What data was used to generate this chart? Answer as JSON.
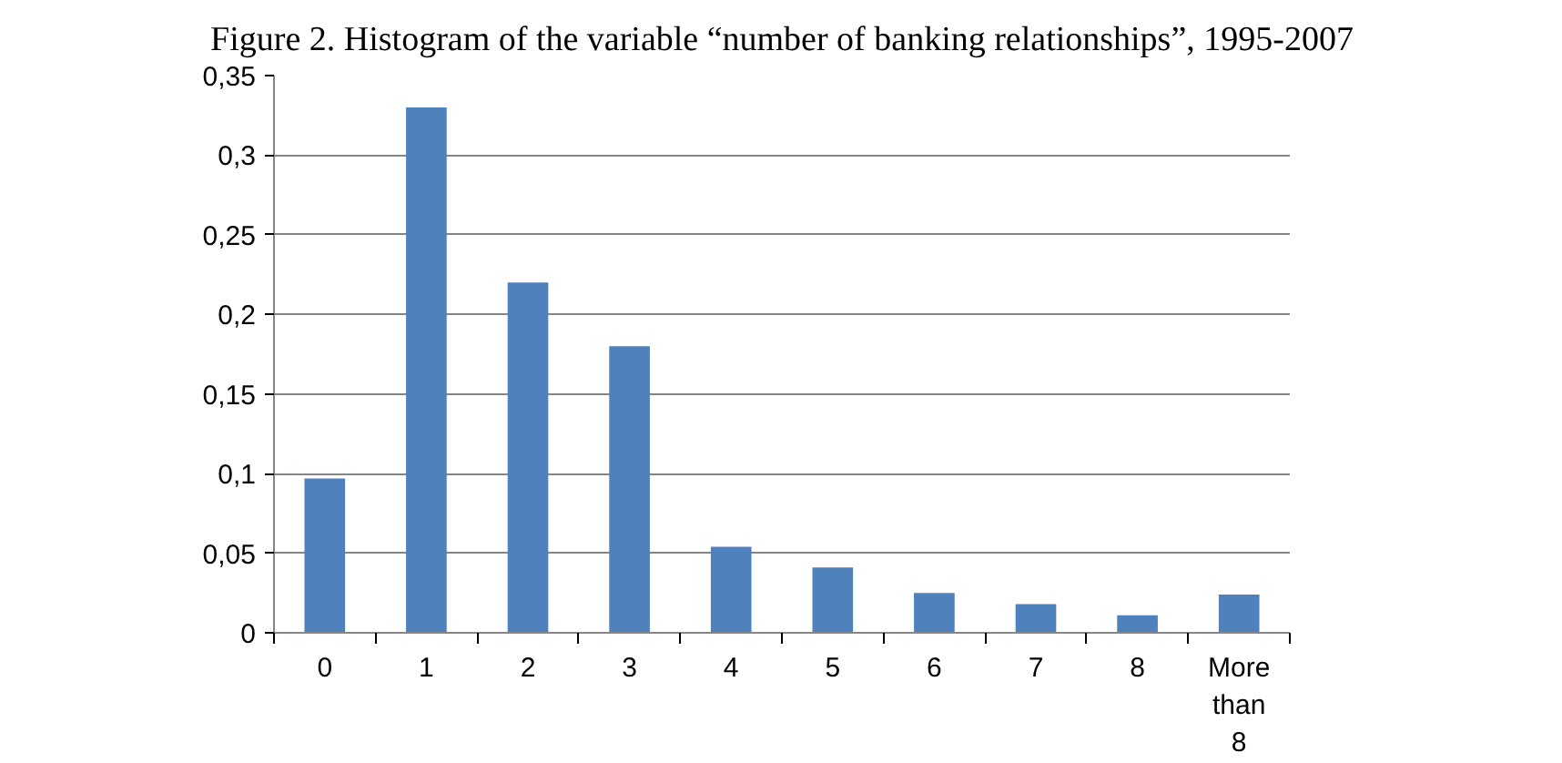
{
  "chart_data": {
    "type": "bar",
    "title": "Figure 2. Histogram of the variable “number of banking relationships”, 1995-2007",
    "categories": [
      "0",
      "1",
      "2",
      "3",
      "4",
      "5",
      "6",
      "7",
      "8",
      "More than 8"
    ],
    "series": [
      {
        "color": "#4f81bd",
        "values": [
          0.097,
          0.33,
          0.22,
          0.18,
          0.054,
          0.041,
          0.025,
          0.018,
          0.011,
          0.024
        ]
      }
    ],
    "ylim": [
      0,
      0.35
    ],
    "yticks": [
      {
        "value": 0,
        "label": "0"
      },
      {
        "value": 0.05,
        "label": "0,05"
      },
      {
        "value": 0.1,
        "label": "0,1"
      },
      {
        "value": 0.15,
        "label": "0,15"
      },
      {
        "value": 0.2,
        "label": "0,2"
      },
      {
        "value": 0.25,
        "label": "0,25"
      },
      {
        "value": 0.3,
        "label": "0,3"
      },
      {
        "value": 0.35,
        "label": "0,35"
      }
    ],
    "grid": "y"
  }
}
